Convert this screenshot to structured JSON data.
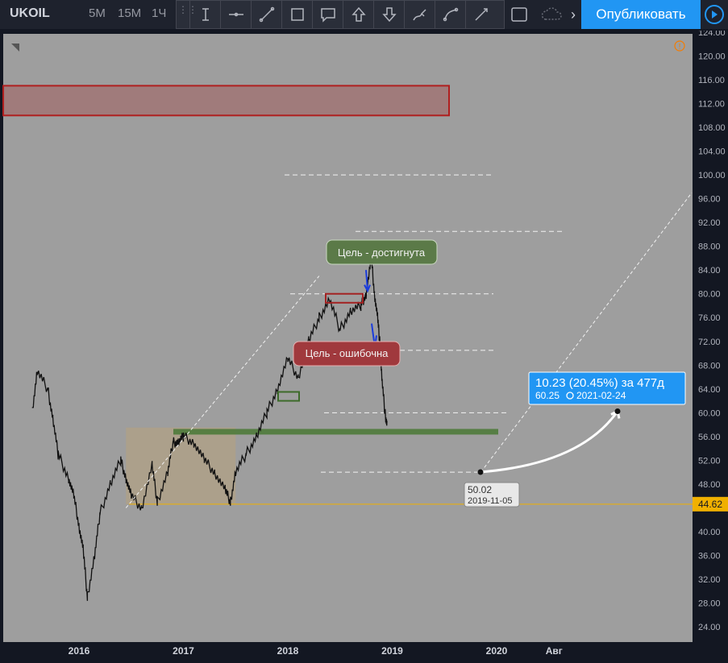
{
  "header": {
    "symbol": "UKOIL",
    "timeframes": [
      "5М",
      "15М",
      "1Ч"
    ],
    "publish_label": "Опубликовать"
  },
  "drawing_tools": [
    {
      "name": "cursor-text-icon"
    },
    {
      "name": "horizontal-line-icon"
    },
    {
      "name": "trend-line-icon"
    },
    {
      "name": "rectangle-select-icon"
    },
    {
      "name": "callout-icon"
    },
    {
      "name": "arrow-up-icon"
    },
    {
      "name": "arrow-down-icon"
    },
    {
      "name": "brush-icon"
    },
    {
      "name": "path-icon"
    },
    {
      "name": "ray-icon"
    }
  ],
  "chart_data": {
    "type": "line",
    "symbol": "UKOIL",
    "y_axis_ticks": [
      24,
      28,
      32,
      36,
      40,
      44,
      48,
      52,
      56,
      60,
      64,
      68,
      72,
      76,
      80,
      84,
      88,
      92,
      96,
      100,
      104,
      108,
      112,
      116,
      120,
      124
    ],
    "y_axis_labels": [
      "24.00",
      "28.00",
      "32.00",
      "36.00",
      "40.00",
      "",
      "48.00",
      "52.00",
      "56.00",
      "60.00",
      "64.00",
      "68.00",
      "72.00",
      "76.00",
      "80.00",
      "84.00",
      "88.00",
      "92.00",
      "96.00",
      "100.00",
      "104.00",
      "108.00",
      "112.00",
      "116.00",
      "120.00",
      "124.00"
    ],
    "x_axis_labels": [
      "2016",
      "2017",
      "2018",
      "2019",
      "2020",
      "Авг"
    ],
    "price_series": {
      "x": [
        2015.55,
        2015.6,
        2015.7,
        2015.75,
        2015.8,
        2015.9,
        2015.95,
        2016.0,
        2016.04,
        2016.08,
        2016.15,
        2016.2,
        2016.3,
        2016.4,
        2016.45,
        2016.5,
        2016.6,
        2016.7,
        2016.75,
        2016.85,
        2016.9,
        2016.95,
        2017.0,
        2017.1,
        2017.2,
        2017.3,
        2017.4,
        2017.45,
        2017.5,
        2017.6,
        2017.7,
        2017.8,
        2017.9,
        2018.0,
        2018.1,
        2018.2,
        2018.3,
        2018.4,
        2018.5,
        2018.6,
        2018.7,
        2018.75,
        2018.8,
        2018.83,
        2018.86,
        2018.88,
        2018.9,
        2018.93,
        2018.95
      ],
      "y": [
        60,
        67,
        64,
        59,
        53,
        49,
        46,
        41,
        37,
        29,
        36,
        43,
        48,
        52,
        49,
        46,
        44,
        51,
        45,
        50,
        55,
        55,
        56,
        55,
        52,
        50,
        47,
        45,
        50,
        53,
        56,
        60,
        64,
        69,
        66,
        72,
        76,
        79,
        74,
        77,
        78,
        80,
        86,
        80,
        76,
        72,
        66,
        60,
        58
      ]
    },
    "current_price_label": "44.62",
    "zones": [
      {
        "type": "resistance",
        "y_from": 110,
        "y_to": 115,
        "color": "#a33a3a"
      },
      {
        "type": "support",
        "y": 56.8,
        "color": "#4e7a3a"
      },
      {
        "type": "accumulation",
        "x_from": 2016.45,
        "x_to": 2017.5,
        "y_from": 44.6,
        "y_to": 57.5,
        "color": "#b8a27c"
      }
    ],
    "levels": [
      100,
      90.5,
      80,
      70.5,
      60,
      50
    ],
    "annotations": [
      {
        "text": "Цель - достигнута",
        "color": "#5b7a48"
      },
      {
        "text": "Цель - ошибочна",
        "color": "#a0393d"
      }
    ],
    "projection": {
      "from_value": "50.02",
      "from_date": "2019-11-05",
      "change_text": "10.23 (20.45%) за 477д",
      "to_value": "60.25",
      "to_date": "2021-02-24"
    },
    "colors": {
      "background": "#9e9e9e",
      "accent": "#2196f3",
      "price_line": "#f0b000"
    }
  }
}
